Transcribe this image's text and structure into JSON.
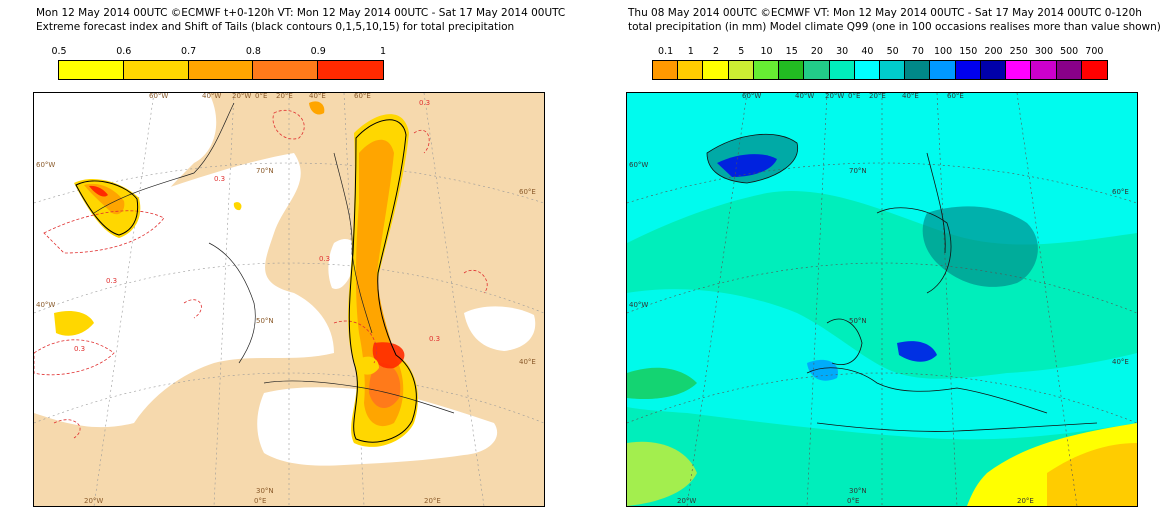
{
  "left": {
    "title_line1": "Mon 12 May 2014 00UTC ©ECMWF t+0-120h  VT: Mon 12 May 2014 00UTC - Sat 17 May 2014 00UTC",
    "title_line2": "Extreme forecast index and Shift of Tails (black contours 0,1,5,10,15) for total precipitation",
    "legend_labels": [
      "0.5",
      "0.6",
      "0.7",
      "0.8",
      "0.9",
      "1"
    ],
    "legend_colors": [
      "#ffff00",
      "#ffd700",
      "#ffa500",
      "#ff7a1a",
      "#ff2a00"
    ],
    "contour_label": "0.3",
    "graticule_labels": {
      "lon_top": [
        "60°W",
        "40°W",
        "20°W",
        "0°E",
        "20°E",
        "40°E",
        "60°E"
      ],
      "lat_left": [
        "60°W",
        "40°W"
      ],
      "lat_right": [
        "60°E",
        "40°E"
      ],
      "lon_bottom": [
        "20°W",
        "0°E",
        "20°E"
      ],
      "inner": [
        "70°N",
        "50°N",
        "30°N"
      ]
    }
  },
  "right": {
    "title_line1": "Thu 08 May 2014 00UTC ©ECMWF VT: Mon 12 May 2014 00UTC - Sat 17 May 2014 00UTC   0-120h",
    "title_line2": "total precipitation (in mm)  Model climate Q99 (one in 100 occasions realises more than value shown)",
    "legend_labels": [
      "0.1",
      "1",
      "2",
      "5",
      "10",
      "15",
      "20",
      "30",
      "40",
      "50",
      "70",
      "100",
      "150",
      "200",
      "250",
      "300",
      "500",
      "700"
    ],
    "legend_colors": [
      "#ff9900",
      "#ffcc00",
      "#ffff00",
      "#ccee33",
      "#66ee33",
      "#22bb22",
      "#22cc88",
      "#00eebb",
      "#00ffff",
      "#00cccc",
      "#008888",
      "#0099ff",
      "#0000ee",
      "#0000aa",
      "#ff00ff",
      "#cc00cc",
      "#880088",
      "#ff0000"
    ],
    "graticule_labels": {
      "lon_top": [
        "60°W",
        "40°W",
        "20°W",
        "0°E",
        "20°E",
        "40°E",
        "60°E"
      ],
      "lat_left": [
        "60°W",
        "40°W"
      ],
      "lat_right": [
        "60°E",
        "40°E"
      ],
      "lon_bottom": [
        "20°W",
        "0°E",
        "20°E"
      ],
      "inner": [
        "70°N",
        "50°N",
        "30°N"
      ]
    }
  }
}
